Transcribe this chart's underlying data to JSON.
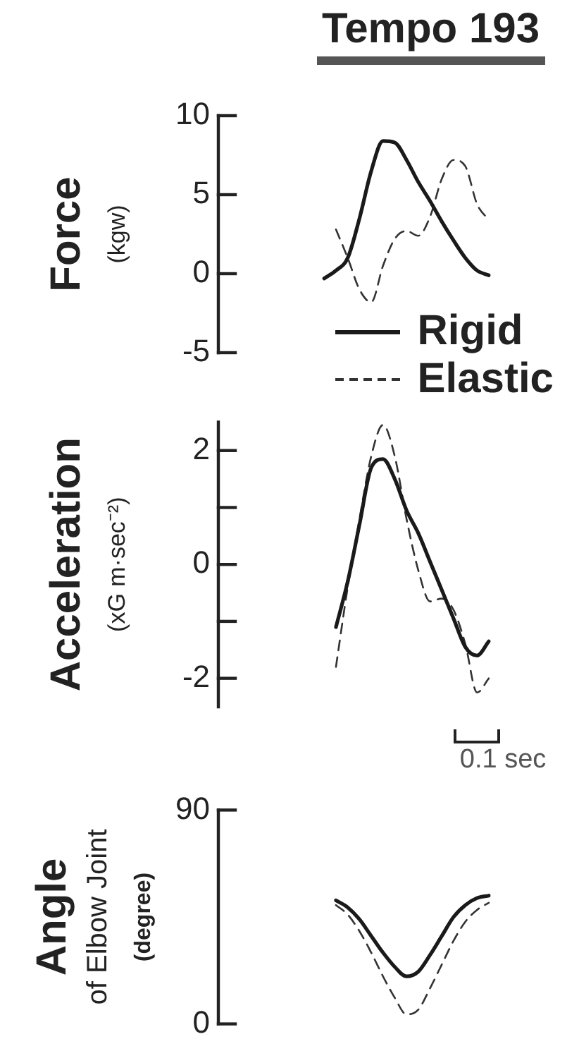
{
  "chart_data": [
    {
      "type": "line",
      "title": "Tempo 193",
      "ylabel": "Force\n(kgw)",
      "categories": [
        null,
        null,
        null,
        null,
        null,
        null,
        null,
        null,
        null,
        null,
        null,
        null,
        null,
        null,
        null,
        null,
        null,
        null,
        null,
        null,
        null,
        null,
        null,
        null
      ],
      "series": [
        {
          "name": "Rigid",
          "color": "#1a1a1a",
          "line_style": "solid",
          "values": [
            null,
            null,
            null,
            null,
            null,
            null,
            null,
            null,
            null,
            -0.3,
            0.2,
            1.0,
            3.5,
            6.5,
            8.4,
            8.3,
            7.2,
            5.8,
            4.6,
            3.3,
            2.1,
            1.0,
            0.2,
            -0.1
          ]
        },
        {
          "name": "Elastic",
          "color": "#333333",
          "line_style": "dashed",
          "values": [
            null,
            null,
            null,
            null,
            null,
            null,
            null,
            null,
            null,
            null,
            2.8,
            1.0,
            -1.0,
            -1.8,
            0.5,
            2.2,
            2.7,
            2.4,
            3.6,
            6.0,
            7.2,
            6.8,
            4.4,
            3.4
          ]
        }
      ],
      "ylim": [
        -5,
        10
      ],
      "yticks": [
        -5,
        0,
        5,
        10
      ],
      "tick_labels": "y",
      "legend": "bottom right"
    },
    {
      "type": "line",
      "ylabel": "Acceleration\n(xG m·sec⁻²)",
      "categories": [
        null,
        null,
        null,
        null,
        null,
        null,
        null,
        null,
        null,
        null,
        null,
        null,
        null,
        null,
        null,
        null,
        null,
        null,
        null,
        null,
        null,
        null,
        null,
        null
      ],
      "series": [
        {
          "color": "#1a1a1a",
          "line_style": "solid",
          "values": [
            null,
            null,
            null,
            null,
            null,
            null,
            null,
            null,
            null,
            null,
            -1.1,
            -0.3,
            0.7,
            1.7,
            1.85,
            1.5,
            0.95,
            0.55,
            0.05,
            -0.45,
            -0.95,
            -1.45,
            -1.6,
            -1.35
          ]
        },
        {
          "color": "#333333",
          "line_style": "dashed",
          "values": [
            null,
            null,
            null,
            null,
            null,
            null,
            null,
            null,
            null,
            null,
            -1.8,
            -0.4,
            0.8,
            1.9,
            2.45,
            1.9,
            0.8,
            -0.1,
            -0.65,
            -0.6,
            -0.8,
            -1.4,
            -2.25,
            -2.0
          ]
        }
      ],
      "ylim": [
        -2.5,
        2.5
      ],
      "yticks": [
        -2,
        {
          "value": -1,
          "label": null
        },
        0,
        {
          "value": 1,
          "label": null
        },
        2
      ],
      "tick_labels": "y",
      "annotations": [
        "0.1 sec"
      ]
    },
    {
      "type": "line",
      "ylabel": "Angle\nof Elbow Joint\n(degree)",
      "categories": [
        null,
        null,
        null,
        null,
        null,
        null,
        null,
        null,
        null,
        null,
        null,
        null,
        null,
        null,
        null,
        null,
        null,
        null,
        null,
        null,
        null,
        null,
        null,
        null
      ],
      "series": [
        {
          "color": "#1a1a1a",
          "line_style": "solid",
          "values": [
            null,
            null,
            null,
            null,
            null,
            null,
            null,
            null,
            null,
            null,
            52,
            49,
            44,
            37,
            30,
            24,
            20,
            22,
            29,
            37,
            45,
            50,
            53,
            54
          ]
        },
        {
          "color": "#333333",
          "line_style": "dashed",
          "values": [
            null,
            null,
            null,
            null,
            null,
            null,
            null,
            null,
            null,
            null,
            50,
            46,
            39,
            30,
            20,
            11,
            4,
            6,
            15,
            25,
            35,
            43,
            48,
            51
          ]
        }
      ],
      "ylim": [
        0,
        90
      ],
      "yticks": [
        0,
        90
      ],
      "tick_labels": "y"
    }
  ]
}
